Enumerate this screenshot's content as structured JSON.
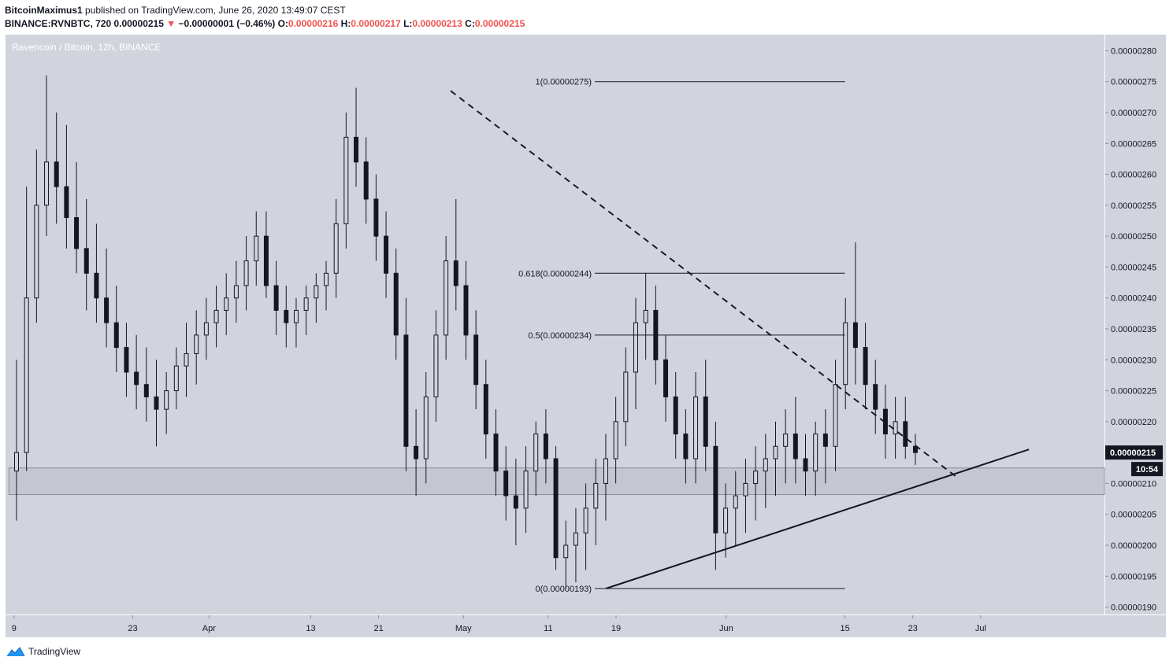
{
  "header": {
    "user": "BitcoinMaximus1",
    "published_text": "published on TradingView.com, June 26, 2020 13:49:07 CEST",
    "symbol": "BINANCE:RVNBTC, 720",
    "last": "0.00000215",
    "change_arrow": "▼",
    "change": "−0.00000001 (−0.46%)",
    "o_label": "O:",
    "o": "0.00000216",
    "h_label": "H:",
    "h": "0.00000217",
    "l_label": "L:",
    "l": "0.00000213",
    "c_label": "C:",
    "c": "0.00000215"
  },
  "footer": {
    "brand": "TradingView",
    "logo_icon": "tradingview-logo-icon"
  },
  "colors": {
    "plot_bg": "#d1d4dc",
    "axis_bg": "#d1d4dc",
    "candle": "#131722",
    "price_badge": "#131722",
    "change_red": "#ef5350"
  },
  "chart_data": {
    "type": "candlestick",
    "title": "Ravencoin / Bitcoin, 12h, BINANCE",
    "y_ticks": [
      "0.00000280",
      "0.00000275",
      "0.00000270",
      "0.00000265",
      "0.00000260",
      "0.00000255",
      "0.00000250",
      "0.00000245",
      "0.00000240",
      "0.00000235",
      "0.00000230",
      "0.00000225",
      "0.00000220",
      "0.00000215",
      "0.00000210",
      "0.00000205",
      "0.00000200",
      "0.00000195",
      "0.00000190"
    ],
    "y_tick_values": [
      280,
      275,
      270,
      265,
      260,
      255,
      250,
      245,
      240,
      235,
      230,
      225,
      220,
      215,
      210,
      205,
      200,
      195,
      190
    ],
    "y_unit_note": "values in 1e-8 BTC",
    "ylim": [
      188.8,
      282.6
    ],
    "x_ticks": [
      {
        "label": "9",
        "day": 0
      },
      {
        "label": "23",
        "day": 14
      },
      {
        "label": "Apr",
        "day": 23
      },
      {
        "label": "13",
        "day": 35
      },
      {
        "label": "21",
        "day": 43
      },
      {
        "label": "May",
        "day": 53
      },
      {
        "label": "11",
        "day": 63
      },
      {
        "label": "19",
        "day": 71
      },
      {
        "label": "Jun",
        "day": 84
      },
      {
        "label": "15",
        "day": 98
      },
      {
        "label": "23",
        "day": 106
      },
      {
        "label": "Jul",
        "day": 114
      }
    ],
    "x_start": "2020-03-09",
    "xlim_days": [
      -1.0,
      128.6
    ],
    "current_price_label": "0.00000215",
    "countdown_label": "10:54",
    "current_price": 215,
    "support_zone": [
      208.2,
      212.5
    ],
    "fib_levels": [
      {
        "label": "1(0.00000275)",
        "value": 275
      },
      {
        "label": "0.618(0.00000244)",
        "value": 244
      },
      {
        "label": "0.5(0.00000234)",
        "value": 234
      },
      {
        "label": "0(0.00000193)",
        "value": 193
      }
    ],
    "fib_x_days": [
      68.5,
      98.0
    ],
    "descending_trendline": {
      "style": "dashed",
      "from": {
        "day": 51.5,
        "value": 273.5
      },
      "to": {
        "day": 111.3,
        "value": 210.9
      }
    },
    "ascending_trendline": {
      "style": "solid",
      "from": {
        "day": 69.8,
        "value": 193.0
      },
      "to": {
        "day": 119.7,
        "value": 215.5
      }
    },
    "ohlc": [
      [
        212,
        230,
        204,
        215
      ],
      [
        215,
        258,
        212,
        240
      ],
      [
        240,
        264,
        236,
        255
      ],
      [
        255,
        276,
        250,
        262
      ],
      [
        262,
        270,
        252,
        258
      ],
      [
        258,
        268,
        248,
        253
      ],
      [
        253,
        262,
        244,
        248
      ],
      [
        248,
        256,
        238,
        244
      ],
      [
        244,
        252,
        236,
        240
      ],
      [
        240,
        248,
        232,
        236
      ],
      [
        236,
        242,
        228,
        232
      ],
      [
        232,
        236,
        224,
        228
      ],
      [
        228,
        234,
        222,
        226
      ],
      [
        226,
        232,
        220,
        224
      ],
      [
        224,
        230,
        216,
        222
      ],
      [
        222,
        228,
        218,
        225
      ],
      [
        225,
        232,
        222,
        229
      ],
      [
        229,
        236,
        224,
        231
      ],
      [
        231,
        238,
        226,
        234
      ],
      [
        234,
        240,
        230,
        236
      ],
      [
        236,
        242,
        232,
        238
      ],
      [
        238,
        244,
        234,
        240
      ],
      [
        240,
        246,
        236,
        242
      ],
      [
        242,
        250,
        238,
        246
      ],
      [
        246,
        254,
        242,
        250
      ],
      [
        250,
        254,
        240,
        242
      ],
      [
        242,
        246,
        234,
        238
      ],
      [
        238,
        242,
        232,
        236
      ],
      [
        236,
        240,
        232,
        238
      ],
      [
        238,
        242,
        234,
        240
      ],
      [
        240,
        244,
        236,
        242
      ],
      [
        242,
        246,
        238,
        244
      ],
      [
        244,
        256,
        240,
        252
      ],
      [
        252,
        270,
        248,
        266
      ],
      [
        266,
        274,
        258,
        262
      ],
      [
        262,
        266,
        252,
        256
      ],
      [
        256,
        260,
        246,
        250
      ],
      [
        250,
        254,
        240,
        244
      ],
      [
        244,
        248,
        230,
        234
      ],
      [
        234,
        240,
        212,
        216
      ],
      [
        216,
        222,
        208,
        214
      ],
      [
        214,
        228,
        210,
        224
      ],
      [
        224,
        238,
        220,
        234
      ],
      [
        234,
        250,
        230,
        246
      ],
      [
        246,
        256,
        238,
        242
      ],
      [
        242,
        246,
        230,
        234
      ],
      [
        234,
        238,
        222,
        226
      ],
      [
        226,
        230,
        214,
        218
      ],
      [
        218,
        222,
        208,
        212
      ],
      [
        212,
        216,
        204,
        208
      ],
      [
        208,
        214,
        200,
        206
      ],
      [
        206,
        216,
        202,
        212
      ],
      [
        212,
        220,
        208,
        218
      ],
      [
        218,
        222,
        210,
        214
      ],
      [
        214,
        216,
        196,
        198
      ],
      [
        198,
        204,
        193,
        200
      ],
      [
        200,
        206,
        194,
        202
      ],
      [
        202,
        210,
        196,
        206
      ],
      [
        206,
        214,
        200,
        210
      ],
      [
        210,
        218,
        204,
        214
      ],
      [
        214,
        224,
        210,
        220
      ],
      [
        220,
        232,
        216,
        228
      ],
      [
        228,
        240,
        222,
        236
      ],
      [
        236,
        244,
        230,
        238
      ],
      [
        238,
        242,
        226,
        230
      ],
      [
        230,
        234,
        220,
        224
      ],
      [
        224,
        228,
        214,
        218
      ],
      [
        218,
        222,
        210,
        214
      ],
      [
        214,
        228,
        210,
        224
      ],
      [
        224,
        230,
        212,
        216
      ],
      [
        216,
        220,
        196,
        202
      ],
      [
        202,
        210,
        198,
        206
      ],
      [
        206,
        212,
        200,
        208
      ],
      [
        208,
        214,
        202,
        210
      ],
      [
        210,
        216,
        204,
        212
      ],
      [
        212,
        218,
        206,
        214
      ],
      [
        214,
        220,
        208,
        216
      ],
      [
        216,
        222,
        210,
        218
      ],
      [
        218,
        224,
        210,
        214
      ],
      [
        214,
        218,
        208,
        212
      ],
      [
        212,
        220,
        208,
        218
      ],
      [
        218,
        222,
        210,
        216
      ],
      [
        216,
        230,
        212,
        226
      ],
      [
        226,
        240,
        222,
        236
      ],
      [
        236,
        249,
        226,
        232
      ],
      [
        232,
        236,
        222,
        226
      ],
      [
        226,
        230,
        218,
        222
      ],
      [
        222,
        226,
        214,
        218
      ],
      [
        218,
        224,
        214,
        220
      ],
      [
        220,
        224,
        214,
        216
      ],
      [
        216,
        218,
        213,
        215
      ]
    ]
  }
}
